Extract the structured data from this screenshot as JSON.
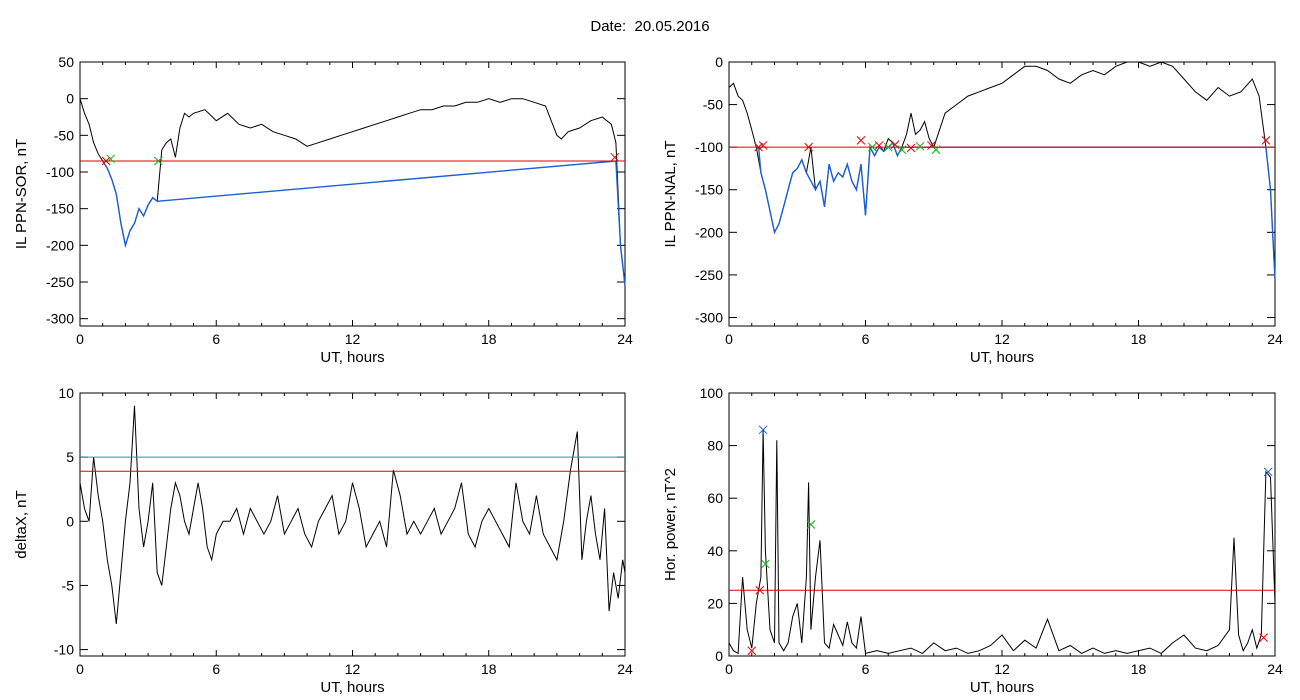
{
  "header": {
    "date_text": "Date:  20.05.2016"
  },
  "chart_data": [
    {
      "type": "line",
      "id": "il-sor",
      "ylabel": "IL PPN-SOR, nT",
      "xlabel": "UT, hours",
      "xlim": [
        0,
        24
      ],
      "ylim": [
        -310,
        50
      ],
      "xticks": [
        0,
        6,
        12,
        18,
        24
      ],
      "yticks": [
        50,
        0,
        -50,
        -100,
        -150,
        -200,
        -250,
        -300
      ],
      "threshold": {
        "value": -85,
        "color": "#e00000"
      },
      "series": [
        {
          "color": "#000000",
          "x": [
            0,
            0.2,
            0.4,
            0.6,
            0.8,
            1.0,
            1.2,
            1.4,
            1.6,
            1.8,
            2.0,
            2.2,
            2.4,
            2.6,
            2.8,
            3.0,
            3.2,
            3.4,
            3.6,
            3.8,
            4.0,
            4.2,
            4.4,
            4.6,
            4.8,
            5.0,
            5.5,
            6.0,
            6.5,
            7.0,
            7.5,
            8.0,
            8.5,
            9.0,
            9.5,
            10.0,
            10.5,
            11.0,
            11.5,
            12.0,
            12.5,
            13.0,
            13.5,
            14.0,
            14.5,
            15.0,
            15.5,
            16.0,
            16.5,
            17.0,
            17.5,
            18.0,
            18.5,
            19.0,
            19.5,
            20.0,
            20.5,
            21.0,
            21.2,
            21.5,
            22.0,
            22.5,
            23.0,
            23.2,
            23.4,
            23.6,
            23.8,
            24.0
          ],
          "y": [
            0,
            -20,
            -35,
            -60,
            -75,
            -85,
            -95,
            -110,
            -130,
            -170,
            -200,
            -180,
            -170,
            -150,
            -160,
            -145,
            -135,
            -140,
            -70,
            -60,
            -55,
            -80,
            -40,
            -20,
            -25,
            -20,
            -15,
            -30,
            -20,
            -35,
            -40,
            -35,
            -45,
            -50,
            -55,
            -65,
            -60,
            -55,
            -50,
            -45,
            -40,
            -35,
            -30,
            -25,
            -20,
            -15,
            -15,
            -10,
            -10,
            -5,
            -5,
            0,
            -5,
            0,
            0,
            -5,
            -10,
            -50,
            -55,
            -45,
            -40,
            -30,
            -25,
            -30,
            -35,
            -60,
            -200,
            -255
          ]
        },
        {
          "color": "#1a5fd6",
          "x": [
            1.0,
            1.2,
            1.4,
            1.6,
            1.8,
            2.0,
            2.2,
            2.4,
            2.6,
            2.8,
            3.0,
            3.2,
            3.4,
            23.6,
            23.8,
            24.0
          ],
          "y": [
            -85,
            -95,
            -110,
            -130,
            -170,
            -200,
            -180,
            -170,
            -150,
            -160,
            -145,
            -135,
            -140,
            -85,
            -200,
            -255
          ]
        }
      ],
      "markers": [
        {
          "x": 1.15,
          "y": -85,
          "color": "#e00000"
        },
        {
          "x": 1.35,
          "y": -82,
          "color": "#10b010"
        },
        {
          "x": 3.45,
          "y": -85,
          "color": "#10b010"
        },
        {
          "x": 23.55,
          "y": -80,
          "color": "#e00000"
        }
      ]
    },
    {
      "type": "line",
      "id": "il-nal",
      "ylabel": "IL PPN-NAL, nT",
      "xlabel": "UT, hours",
      "xlim": [
        0,
        24
      ],
      "ylim": [
        -310,
        0
      ],
      "xticks": [
        0,
        6,
        12,
        18,
        24
      ],
      "yticks": [
        0,
        -50,
        -100,
        -150,
        -200,
        -250,
        -300
      ],
      "threshold": {
        "value": -100,
        "color": "#e00000"
      },
      "series": [
        {
          "color": "#000000",
          "x": [
            0,
            0.2,
            0.4,
            0.6,
            0.8,
            1.0,
            1.2,
            1.4,
            1.6,
            1.8,
            2.0,
            2.2,
            2.4,
            2.6,
            2.8,
            3.0,
            3.2,
            3.4,
            3.6,
            3.8,
            4.0,
            4.2,
            4.4,
            4.6,
            4.8,
            5.0,
            5.2,
            5.4,
            5.6,
            5.8,
            6.0,
            6.2,
            6.4,
            6.6,
            6.8,
            7.0,
            7.2,
            7.4,
            7.6,
            7.8,
            8.0,
            8.2,
            8.4,
            8.6,
            8.8,
            9.0,
            9.5,
            10.0,
            10.5,
            11.0,
            11.5,
            12.0,
            12.5,
            13.0,
            13.5,
            14.0,
            14.5,
            15.0,
            15.5,
            16.0,
            16.5,
            17.0,
            17.5,
            18.0,
            18.5,
            19.0,
            19.5,
            20.0,
            20.5,
            21.0,
            21.5,
            22.0,
            22.5,
            23.0,
            23.3,
            23.6,
            23.8,
            24.0
          ],
          "y": [
            -30,
            -25,
            -40,
            -45,
            -60,
            -80,
            -100,
            -130,
            -150,
            -175,
            -200,
            -190,
            -170,
            -150,
            -130,
            -125,
            -115,
            -130,
            -100,
            -150,
            -140,
            -170,
            -120,
            -140,
            -130,
            -135,
            -120,
            -140,
            -150,
            -120,
            -180,
            -100,
            -110,
            -100,
            -105,
            -90,
            -95,
            -110,
            -100,
            -85,
            -60,
            -85,
            -80,
            -70,
            -90,
            -100,
            -60,
            -50,
            -40,
            -35,
            -30,
            -25,
            -15,
            -5,
            -5,
            -10,
            -20,
            -25,
            -15,
            -10,
            -15,
            -5,
            0,
            0,
            -5,
            0,
            -5,
            -20,
            -35,
            -45,
            -30,
            -40,
            -35,
            -20,
            -40,
            -100,
            -150,
            -255
          ]
        },
        {
          "color": "#1a5fd6",
          "x": [
            1.3,
            1.4,
            1.6,
            1.8,
            2.0,
            2.2,
            2.4,
            2.6,
            2.8,
            3.0,
            3.2,
            3.4,
            3.8,
            4.0,
            4.2,
            4.4,
            4.6,
            4.8,
            5.0,
            5.2,
            5.4,
            5.6,
            5.8,
            6.0,
            6.2,
            6.4,
            6.6,
            6.8,
            7.0,
            7.2,
            7.4,
            7.6,
            7.8,
            8.0,
            8.2,
            8.4,
            8.6,
            8.8,
            9.0,
            23.6,
            23.8,
            24.0
          ],
          "y": [
            -100,
            -130,
            -150,
            -175,
            -200,
            -190,
            -170,
            -150,
            -130,
            -125,
            -115,
            -130,
            -150,
            -140,
            -170,
            -120,
            -140,
            -130,
            -135,
            -120,
            -140,
            -150,
            -120,
            -180,
            -100,
            -110,
            -100,
            -105,
            -100,
            -95,
            -110,
            -100,
            -100,
            -100,
            -100,
            -100,
            -100,
            -100,
            -100,
            -100,
            -150,
            -255
          ]
        }
      ],
      "markers": [
        {
          "x": 1.3,
          "y": -100,
          "color": "#e00000"
        },
        {
          "x": 1.5,
          "y": -98,
          "color": "#e00000"
        },
        {
          "x": 3.5,
          "y": -100,
          "color": "#e00000"
        },
        {
          "x": 5.8,
          "y": -92,
          "color": "#e00000"
        },
        {
          "x": 6.3,
          "y": -100,
          "color": "#10b010"
        },
        {
          "x": 6.6,
          "y": -98,
          "color": "#e00000"
        },
        {
          "x": 7.0,
          "y": -100,
          "color": "#10b010"
        },
        {
          "x": 7.3,
          "y": -97,
          "color": "#e00000"
        },
        {
          "x": 7.6,
          "y": -103,
          "color": "#10b010"
        },
        {
          "x": 8.0,
          "y": -101,
          "color": "#e00000"
        },
        {
          "x": 8.4,
          "y": -99,
          "color": "#10b010"
        },
        {
          "x": 8.9,
          "y": -98,
          "color": "#e00000"
        },
        {
          "x": 9.1,
          "y": -103,
          "color": "#10b010"
        },
        {
          "x": 23.6,
          "y": -92,
          "color": "#e00000"
        }
      ]
    },
    {
      "type": "line",
      "id": "deltax",
      "ylabel": "deltaX, nT",
      "xlabel": "UT, hours",
      "xlim": [
        0,
        24
      ],
      "ylim": [
        -10.5,
        10
      ],
      "xticks": [
        0,
        6,
        12,
        18,
        24
      ],
      "yticks": [
        10,
        5,
        0,
        -5,
        -10
      ],
      "threshold": {
        "value": 3.9,
        "color": "#e00000"
      },
      "threshold2": {
        "value": 5.0,
        "color": "#1a9a9a"
      },
      "series": [
        {
          "color": "#000000",
          "x": [
            0,
            0.2,
            0.4,
            0.6,
            0.8,
            1.0,
            1.2,
            1.4,
            1.6,
            1.8,
            2.0,
            2.2,
            2.4,
            2.6,
            2.8,
            3.0,
            3.2,
            3.4,
            3.6,
            3.8,
            4.0,
            4.2,
            4.4,
            4.6,
            4.8,
            5.0,
            5.2,
            5.4,
            5.6,
            5.8,
            6.0,
            6.3,
            6.6,
            6.9,
            7.2,
            7.5,
            7.8,
            8.1,
            8.4,
            8.7,
            9.0,
            9.3,
            9.6,
            9.9,
            10.2,
            10.5,
            10.8,
            11.1,
            11.4,
            11.7,
            12.0,
            12.3,
            12.6,
            12.9,
            13.2,
            13.5,
            13.8,
            14.1,
            14.4,
            14.7,
            15.0,
            15.3,
            15.6,
            15.9,
            16.2,
            16.5,
            16.8,
            17.1,
            17.4,
            17.7,
            18.0,
            18.3,
            18.6,
            18.9,
            19.2,
            19.5,
            19.8,
            20.1,
            20.4,
            20.7,
            21.0,
            21.3,
            21.6,
            21.9,
            22.1,
            22.3,
            22.5,
            22.7,
            22.9,
            23.1,
            23.3,
            23.5,
            23.7,
            23.9,
            24.0
          ],
          "y": [
            3,
            1,
            0,
            5,
            2,
            0,
            -3,
            -5,
            -8,
            -4,
            0,
            3,
            9,
            1,
            -2,
            0,
            3,
            -4,
            -5,
            -2,
            1,
            3,
            2,
            0,
            -1,
            1,
            3,
            1,
            -2,
            -3,
            -1,
            0,
            0,
            1,
            -1,
            1,
            0,
            -1,
            0,
            2,
            -1,
            0,
            1,
            -1,
            -2,
            0,
            1,
            2,
            -1,
            0,
            3,
            1,
            -2,
            -1,
            0,
            -2,
            4,
            2,
            -1,
            0,
            -1,
            0,
            1,
            -1,
            0,
            1,
            3,
            -1,
            -2,
            0,
            1,
            0,
            -1,
            -2,
            3,
            0,
            -1,
            2,
            -1,
            -2,
            -3,
            0,
            4,
            7,
            -3,
            0,
            2,
            -1,
            -3,
            1,
            -7,
            -4,
            -6,
            -3,
            -4
          ]
        }
      ],
      "markers": []
    },
    {
      "type": "line",
      "id": "hor-power",
      "ylabel": "Hor. power, nT^2",
      "xlabel": "UT, hours",
      "xlim": [
        0,
        24
      ],
      "ylim": [
        0,
        100
      ],
      "xticks": [
        0,
        6,
        12,
        18,
        24
      ],
      "yticks": [
        100,
        80,
        60,
        40,
        20,
        0
      ],
      "threshold": {
        "value": 25,
        "color": "#e00000"
      },
      "series": [
        {
          "color": "#000000",
          "x": [
            0,
            0.2,
            0.4,
            0.6,
            0.8,
            1.0,
            1.2,
            1.4,
            1.5,
            1.6,
            1.8,
            2.0,
            2.1,
            2.2,
            2.4,
            2.6,
            2.8,
            3.0,
            3.2,
            3.4,
            3.5,
            3.6,
            3.8,
            4.0,
            4.2,
            4.4,
            4.6,
            4.8,
            5.0,
            5.2,
            5.4,
            5.6,
            5.8,
            6.0,
            6.5,
            7.0,
            7.5,
            8.0,
            8.5,
            9.0,
            9.5,
            10.0,
            10.5,
            11.0,
            11.5,
            12.0,
            12.5,
            13.0,
            13.5,
            14.0,
            14.5,
            15.0,
            15.5,
            16.0,
            16.5,
            17.0,
            17.5,
            18.0,
            18.5,
            19.0,
            19.5,
            20.0,
            20.5,
            21.0,
            21.5,
            22.0,
            22.2,
            22.4,
            22.6,
            22.8,
            23.0,
            23.2,
            23.4,
            23.6,
            23.8,
            24.0
          ],
          "y": [
            5,
            2,
            1,
            30,
            10,
            3,
            20,
            30,
            86,
            40,
            10,
            5,
            82,
            5,
            2,
            5,
            15,
            20,
            5,
            30,
            66,
            10,
            30,
            44,
            5,
            3,
            12,
            8,
            4,
            13,
            5,
            3,
            15,
            1,
            2,
            1,
            2,
            3,
            1,
            5,
            2,
            3,
            1,
            2,
            4,
            8,
            2,
            6,
            3,
            14,
            2,
            4,
            1,
            3,
            1,
            2,
            1,
            2,
            3,
            1,
            5,
            8,
            3,
            2,
            4,
            10,
            45,
            8,
            2,
            5,
            10,
            3,
            8,
            70,
            68,
            20
          ]
        }
      ],
      "markers": [
        {
          "x": 1.0,
          "y": 2,
          "color": "#e00000"
        },
        {
          "x": 1.35,
          "y": 25,
          "color": "#e00000"
        },
        {
          "x": 1.5,
          "y": 86,
          "color": "#1a5fd6"
        },
        {
          "x": 1.6,
          "y": 35,
          "color": "#10b010"
        },
        {
          "x": 3.6,
          "y": 50,
          "color": "#10b010"
        },
        {
          "x": 23.5,
          "y": 7,
          "color": "#e00000"
        },
        {
          "x": 23.7,
          "y": 70,
          "color": "#1a5fd6"
        }
      ]
    }
  ]
}
